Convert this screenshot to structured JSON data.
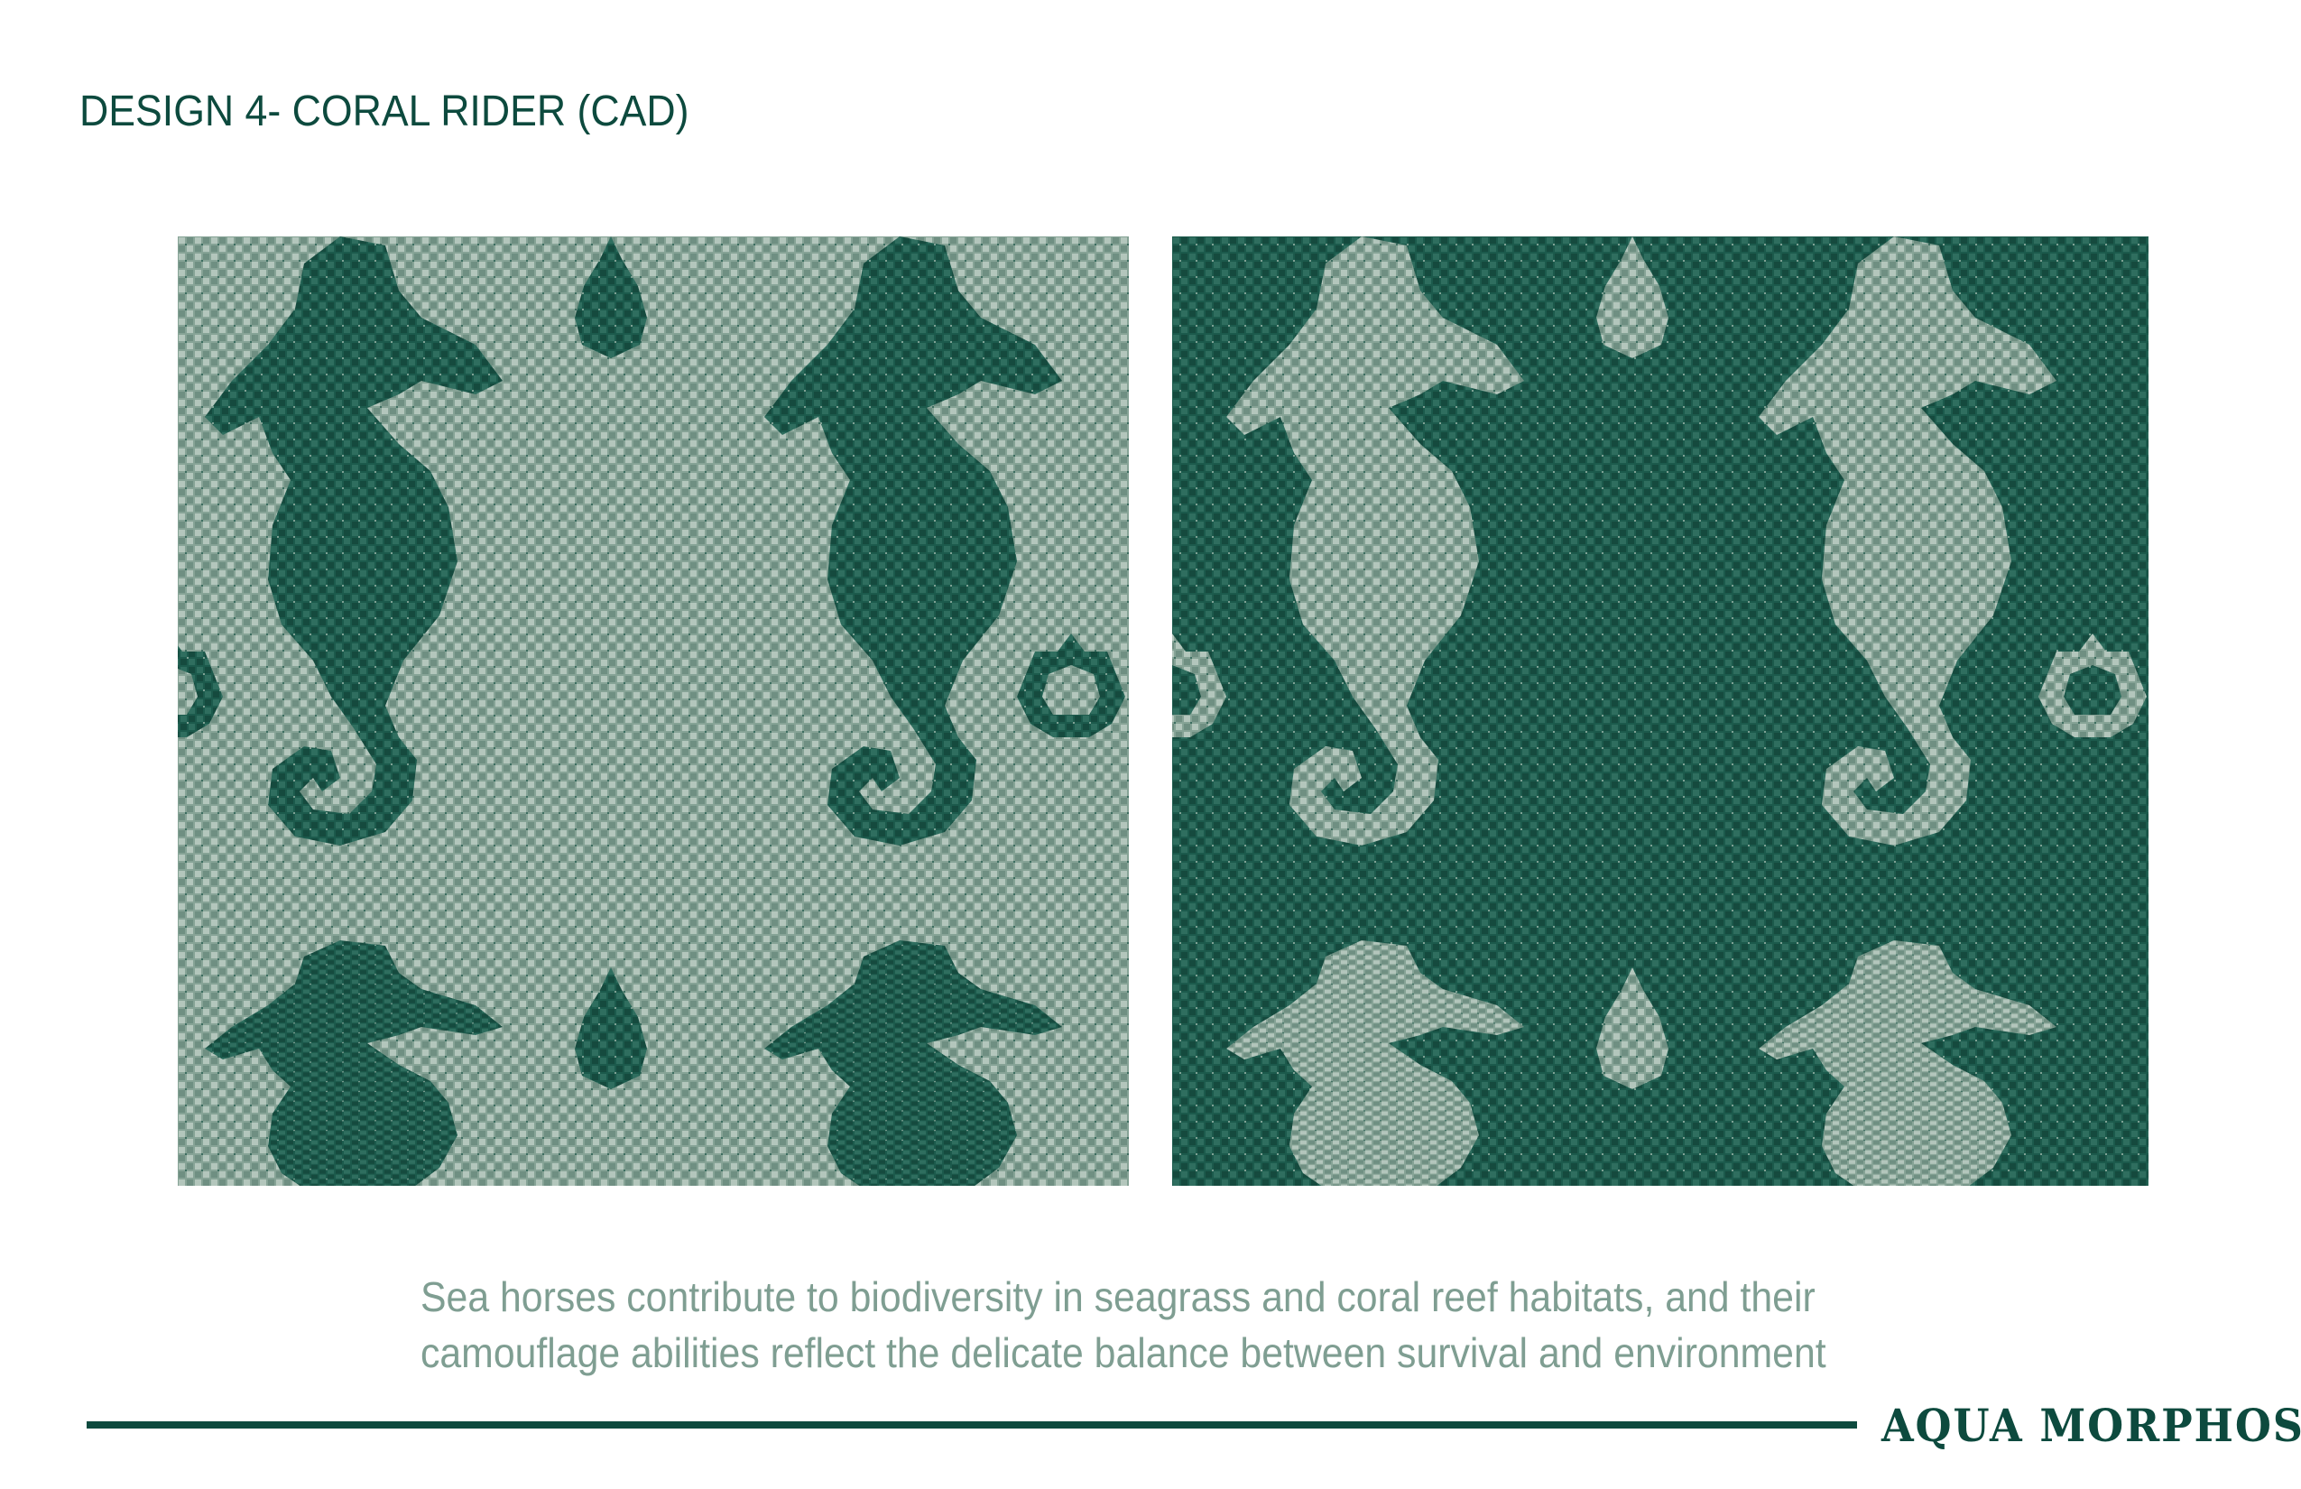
{
  "header": {
    "title": "DESIGN 4- CORAL RIDER  (CAD)"
  },
  "panels": [
    {
      "name": "light-ground-swatch",
      "ground": "#86a396",
      "motif": "#1c5a4c"
    },
    {
      "name": "dark-ground-swatch",
      "ground": "#1c5a4c",
      "motif": "#86a396"
    }
  ],
  "caption": {
    "line1": "Sea horses contribute to biodiversity in seagrass and coral reef habitats, and their",
    "line2": "camouflage abilities reflect the delicate balance between survival and environment"
  },
  "footer": {
    "brand": "AQUA MORPHOSIS"
  },
  "colors": {
    "accent": "#0d4a3e",
    "caption": "#7f9e92"
  }
}
